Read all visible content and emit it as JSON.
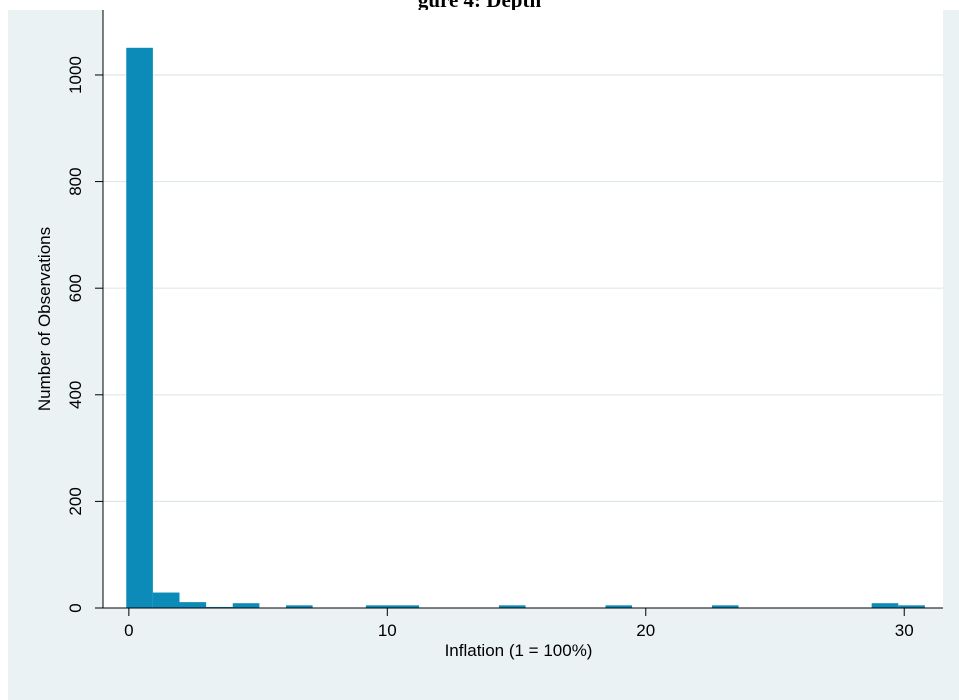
{
  "page": {
    "heading": "gure 4: Depth"
  },
  "chart_data": {
    "type": "bar",
    "xlabel": "Inflation (1 = 100%)",
    "ylabel": "Number of Observations",
    "xlim": [
      -1,
      31.5
    ],
    "ylim": [
      0,
      1060
    ],
    "xticks": [
      0,
      10,
      20,
      30
    ],
    "yticks": [
      0,
      200,
      400,
      600,
      800,
      1000
    ],
    "grid": true,
    "bar_color": "#0c8ab8",
    "bin_width": 1.03,
    "bins": [
      {
        "x0": -0.1,
        "value": 1051
      },
      {
        "x0": 0.93,
        "value": 29
      },
      {
        "x0": 1.96,
        "value": 11
      },
      {
        "x0": 2.99,
        "value": 2
      },
      {
        "x0": 4.02,
        "value": 9
      },
      {
        "x0": 6.08,
        "value": 5
      },
      {
        "x0": 9.17,
        "value": 5
      },
      {
        "x0": 10.2,
        "value": 5
      },
      {
        "x0": 14.32,
        "value": 5
      },
      {
        "x0": 18.44,
        "value": 5
      },
      {
        "x0": 22.56,
        "value": 5
      },
      {
        "x0": 28.74,
        "value": 9
      },
      {
        "x0": 29.77,
        "value": 5
      }
    ]
  }
}
